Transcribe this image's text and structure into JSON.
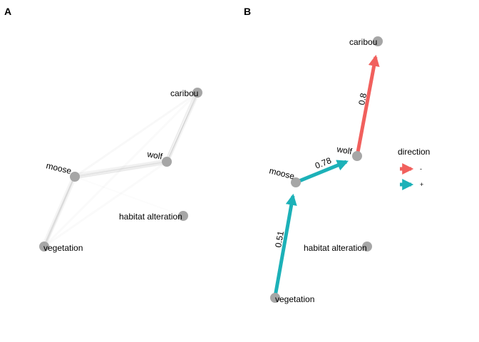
{
  "colors": {
    "negative": "#F1605D",
    "positive": "#1CB1B8",
    "node": "#A6A6A6",
    "bootstrap": "#9A9A9A"
  },
  "panel_a": {
    "label": "A",
    "nodes": {
      "caribou": "caribou",
      "wolf": "wolf",
      "moose": "moose",
      "vegetation": "vegetation",
      "habitat": "habitat alteration"
    }
  },
  "panel_b": {
    "label": "B",
    "nodes": {
      "caribou": "caribou",
      "wolf": "wolf",
      "moose": "moose",
      "vegetation": "vegetation",
      "habitat": "habitat alteration"
    },
    "edges": [
      {
        "from": "wolf",
        "to": "caribou",
        "strength": "0.8",
        "direction": "-"
      },
      {
        "from": "moose",
        "to": "wolf",
        "strength": "0.78",
        "direction": "+"
      },
      {
        "from": "vegetation",
        "to": "moose",
        "strength": "0.51",
        "direction": "+"
      }
    ]
  },
  "legend": {
    "title": "direction",
    "items": [
      {
        "label": "-",
        "color": "#F1605D"
      },
      {
        "label": "+",
        "color": "#1CB1B8"
      }
    ]
  }
}
